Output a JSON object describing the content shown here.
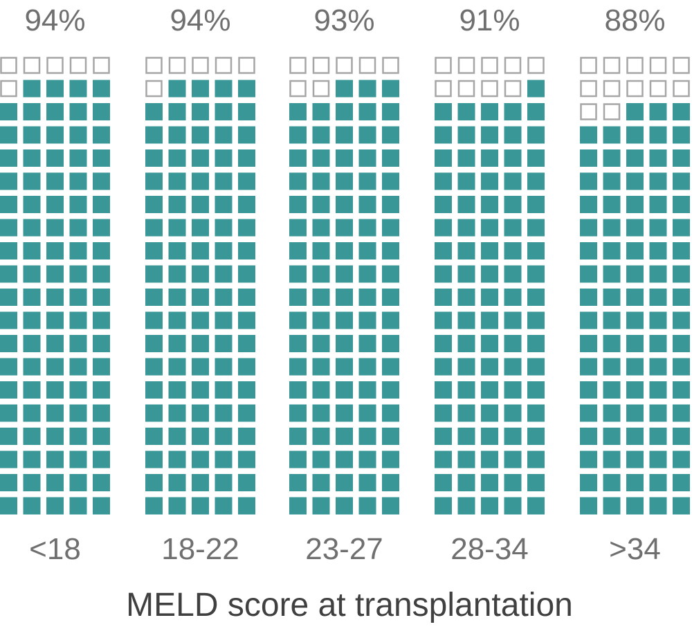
{
  "chart_data": {
    "type": "waffle",
    "categories": [
      "<18",
      "18-22",
      "23-27",
      "28-34",
      ">34"
    ],
    "values": [
      94,
      94,
      93,
      91,
      88
    ],
    "value_labels": [
      "94%",
      "94%",
      "93%",
      "91%",
      "88%"
    ],
    "xlabel": "MELD score at transplantation",
    "units_per_group": 100,
    "colors": {
      "filled": "#3a9797",
      "empty_stroke": "#a6a6a6",
      "text": "#6f6f6f",
      "axis_title": "#404040"
    }
  }
}
